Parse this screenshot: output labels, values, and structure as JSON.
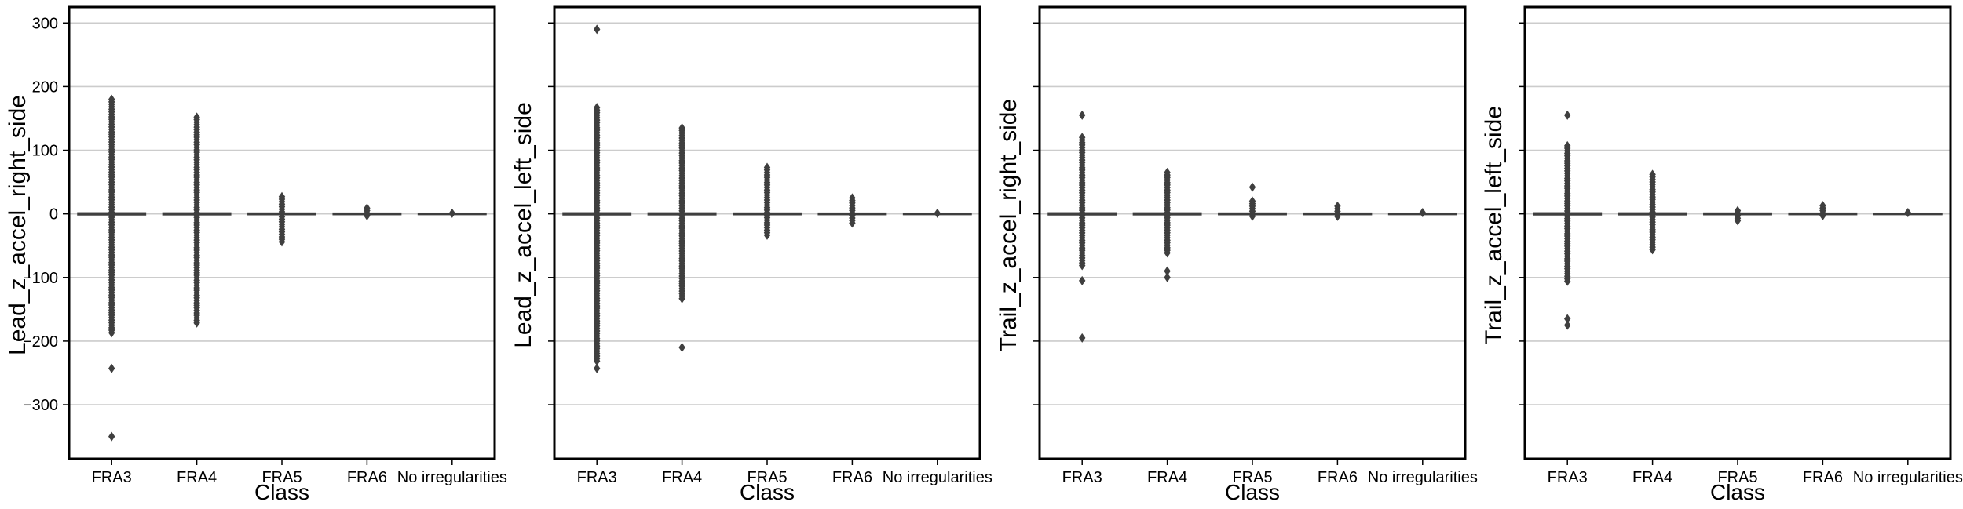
{
  "colors": {
    "box_line": "#3f3f3f",
    "flier": "#3f3f3f",
    "grid": "#cccccc",
    "frame": "#000000",
    "background": "#ffffff"
  },
  "chart_data": [
    {
      "type": "box",
      "xlabel": "Class",
      "ylabel": "Lead_z_accel_right_side",
      "categories": [
        "FRA3",
        "FRA4",
        "FRA5",
        "FRA6",
        "No irregularities"
      ],
      "ylim": [
        -385,
        325
      ],
      "yticks": [
        300,
        200,
        100,
        0,
        -100,
        -200,
        -300
      ],
      "show_ytick_labels": true,
      "grid": "y",
      "series": [
        {
          "category": "FRA3",
          "whisker_low": -0.6,
          "whisker_high": 0.6,
          "outliers_min": -190,
          "outliers_max": 180,
          "extra_outliers": [
            -243,
            -350
          ]
        },
        {
          "category": "FRA4",
          "whisker_low": -0.5,
          "whisker_high": 0.5,
          "outliers_min": -172,
          "outliers_max": 152,
          "extra_outliers": []
        },
        {
          "category": "FRA5",
          "whisker_low": -0.3,
          "whisker_high": 0.3,
          "outliers_min": -45,
          "outliers_max": 27,
          "extra_outliers": []
        },
        {
          "category": "FRA6",
          "whisker_low": -0.2,
          "whisker_high": 0.2,
          "outliers_min": -3,
          "outliers_max": 9,
          "extra_outliers": []
        },
        {
          "category": "No irregularities",
          "whisker_low": -0.1,
          "whisker_high": 0.1,
          "outliers_min": -1,
          "outliers_max": 1,
          "extra_outliers": []
        }
      ]
    },
    {
      "type": "box",
      "xlabel": "Class",
      "ylabel": "Lead_z_accel_left_side",
      "categories": [
        "FRA3",
        "FRA4",
        "FRA5",
        "FRA6",
        "No irregularities"
      ],
      "ylim": [
        -385,
        325
      ],
      "yticks": [
        300,
        200,
        100,
        0,
        -100,
        -200,
        -300
      ],
      "show_ytick_labels": false,
      "grid": "y",
      "series": [
        {
          "category": "FRA3",
          "whisker_low": -0.6,
          "whisker_high": 0.6,
          "outliers_min": -235,
          "outliers_max": 167,
          "extra_outliers": [
            290,
            -243
          ]
        },
        {
          "category": "FRA4",
          "whisker_low": -0.5,
          "whisker_high": 0.5,
          "outliers_min": -135,
          "outliers_max": 135,
          "extra_outliers": [
            -210
          ]
        },
        {
          "category": "FRA5",
          "whisker_low": -0.3,
          "whisker_high": 0.3,
          "outliers_min": -37,
          "outliers_max": 73,
          "extra_outliers": []
        },
        {
          "category": "FRA6",
          "whisker_low": -0.2,
          "whisker_high": 0.2,
          "outliers_min": -15,
          "outliers_max": 25,
          "extra_outliers": []
        },
        {
          "category": "No irregularities",
          "whisker_low": -0.1,
          "whisker_high": 0.1,
          "outliers_min": -1,
          "outliers_max": 1,
          "extra_outliers": []
        }
      ]
    },
    {
      "type": "box",
      "xlabel": "Class",
      "ylabel": "Trail_z_accel_right_side",
      "categories": [
        "FRA3",
        "FRA4",
        "FRA5",
        "FRA6",
        "No irregularities"
      ],
      "ylim": [
        -385,
        325
      ],
      "yticks": [
        300,
        200,
        100,
        0,
        -100,
        -200,
        -300
      ],
      "show_ytick_labels": false,
      "grid": "y",
      "series": [
        {
          "category": "FRA3",
          "whisker_low": -0.6,
          "whisker_high": 0.6,
          "outliers_min": -85,
          "outliers_max": 120,
          "extra_outliers": [
            155,
            -105,
            -195
          ]
        },
        {
          "category": "FRA4",
          "whisker_low": -0.5,
          "whisker_high": 0.5,
          "outliers_min": -65,
          "outliers_max": 65,
          "extra_outliers": [
            -90,
            -100
          ]
        },
        {
          "category": "FRA5",
          "whisker_low": -0.3,
          "whisker_high": 0.3,
          "outliers_min": -4,
          "outliers_max": 20,
          "extra_outliers": [
            42
          ]
        },
        {
          "category": "FRA6",
          "whisker_low": -0.2,
          "whisker_high": 0.2,
          "outliers_min": -4,
          "outliers_max": 12,
          "extra_outliers": []
        },
        {
          "category": "No irregularities",
          "whisker_low": -0.1,
          "whisker_high": 0.1,
          "outliers_min": -1,
          "outliers_max": 2,
          "extra_outliers": []
        }
      ]
    },
    {
      "type": "box",
      "xlabel": "Class",
      "ylabel": "Trail_z_accel_left_side",
      "categories": [
        "FRA3",
        "FRA4",
        "FRA5",
        "FRA6",
        "No irregularities"
      ],
      "ylim": [
        -385,
        325
      ],
      "yticks": [
        300,
        200,
        100,
        0,
        -100,
        -200,
        -300
      ],
      "show_ytick_labels": false,
      "grid": "y",
      "series": [
        {
          "category": "FRA3",
          "whisker_low": -0.6,
          "whisker_high": 0.6,
          "outliers_min": -108,
          "outliers_max": 107,
          "extra_outliers": [
            155,
            -165,
            -175
          ]
        },
        {
          "category": "FRA4",
          "whisker_low": -0.5,
          "whisker_high": 0.5,
          "outliers_min": -60,
          "outliers_max": 62,
          "extra_outliers": []
        },
        {
          "category": "FRA5",
          "whisker_low": -0.3,
          "whisker_high": 0.3,
          "outliers_min": -14,
          "outliers_max": 5,
          "extra_outliers": []
        },
        {
          "category": "FRA6",
          "whisker_low": -0.2,
          "whisker_high": 0.2,
          "outliers_min": -5,
          "outliers_max": 13,
          "extra_outliers": []
        },
        {
          "category": "No irregularities",
          "whisker_low": -0.1,
          "whisker_high": 0.1,
          "outliers_min": -1,
          "outliers_max": 2,
          "extra_outliers": []
        }
      ]
    }
  ]
}
